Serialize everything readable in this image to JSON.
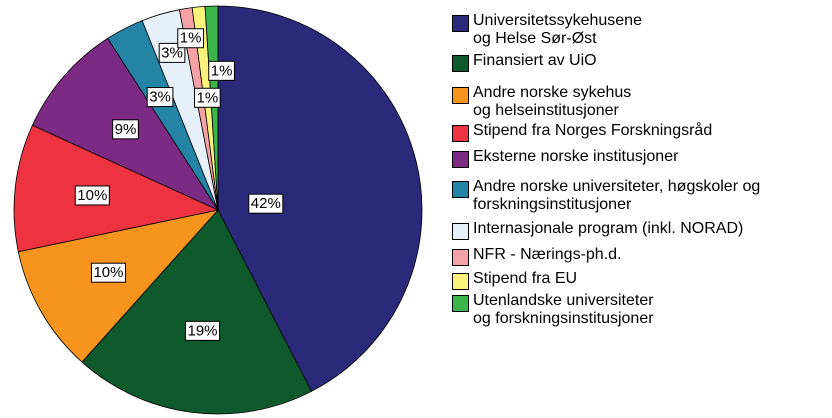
{
  "chart_data": {
    "type": "pie",
    "categories": [
      "Universitetssykehusene\nog Helse Sør-Øst",
      "Finansiert av UiO",
      "Andre norske sykehus\nog helseinstitusjoner",
      "Stipend fra Norges Forskningsråd",
      "Eksterne norske institusjoner",
      "Andre norske universiteter, høgskoler og\nforskningsinstitusjoner",
      "Internasjonale program (inkl. NORAD)",
      "NFR - Nærings-ph.d.",
      "Stipend fra EU",
      "Utenlandske universiteter\nog forskningsinstitusjoner"
    ],
    "values": [
      42,
      19,
      10,
      10,
      9,
      3,
      3,
      1,
      1,
      1
    ],
    "value_labels": [
      "42%",
      "19%",
      "10%",
      "10%",
      "9%",
      "3%",
      "3%",
      "1%",
      "1%",
      "1%"
    ],
    "colors": [
      "#2b2a7a",
      "#0f5a2c",
      "#f7941d",
      "#ee3340",
      "#7d2a84",
      "#2384a6",
      "#e6f0fb",
      "#f4a2a5",
      "#fbf27c",
      "#3bb54a"
    ]
  }
}
